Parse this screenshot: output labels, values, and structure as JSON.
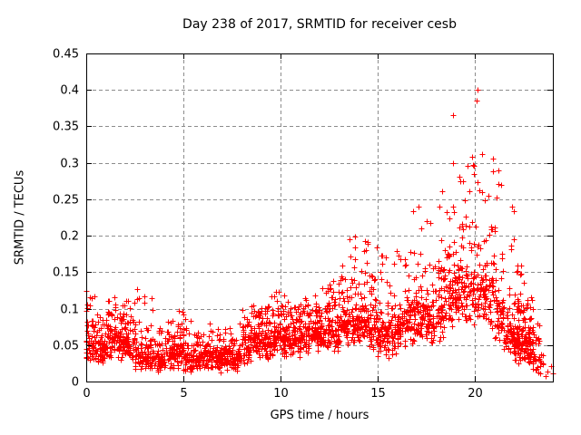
{
  "chart_data": {
    "type": "scatter",
    "title": "Day 238 of 2017, SRMTID for receiver cesb",
    "xlabel": "GPS time / hours",
    "ylabel": "SRMTID / TECUs",
    "xlim": [
      0,
      24
    ],
    "ylim": [
      0,
      0.45
    ],
    "xticks": [
      [
        0,
        "0"
      ],
      [
        5,
        "5"
      ],
      [
        10,
        "10"
      ],
      [
        15,
        "15"
      ],
      [
        20,
        "20"
      ]
    ],
    "yticks": [
      [
        0,
        "0"
      ],
      [
        0.05,
        "0.05"
      ],
      [
        0.1,
        "0.1"
      ],
      [
        0.15,
        "0.15"
      ],
      [
        0.2,
        "0.2"
      ],
      [
        0.25,
        "0.25"
      ],
      [
        0.3,
        "0.3"
      ],
      [
        0.35,
        "0.35"
      ],
      [
        0.4,
        "0.4"
      ],
      [
        0.45,
        "0.45"
      ]
    ],
    "grid": true,
    "grid_color": "#8c8c8c",
    "border_color": "#000000",
    "background": "#ffffff",
    "legend": "none",
    "marker": {
      "shape": "plus",
      "color": "#ff0000",
      "size": 7
    },
    "peak_point": {
      "x": 20.4,
      "y": 0.415
    },
    "seed": 2382017,
    "density_bins_note": "Dense scatter (~2700 pts). Each bin: [start_hour (0.5h wide), point_count, band_low_TECU, band_high_TECU, tail_max_TECU]. ~80% of points lie in the band, rest taper up to tail max.",
    "density_bins": [
      [
        0.0,
        65,
        0.015,
        0.075,
        0.125
      ],
      [
        0.5,
        60,
        0.02,
        0.07,
        0.1
      ],
      [
        1.0,
        60,
        0.03,
        0.09,
        0.12
      ],
      [
        1.5,
        60,
        0.025,
        0.085,
        0.11
      ],
      [
        2.0,
        58,
        0.02,
        0.08,
        0.13
      ],
      [
        2.5,
        52,
        0.012,
        0.06,
        0.13
      ],
      [
        3.0,
        52,
        0.01,
        0.055,
        0.115
      ],
      [
        3.5,
        52,
        0.01,
        0.05,
        0.08
      ],
      [
        4.0,
        52,
        0.015,
        0.055,
        0.085
      ],
      [
        4.5,
        55,
        0.015,
        0.06,
        0.1
      ],
      [
        5.0,
        52,
        0.012,
        0.05,
        0.105
      ],
      [
        5.5,
        52,
        0.01,
        0.05,
        0.07
      ],
      [
        6.0,
        52,
        0.015,
        0.055,
        0.08
      ],
      [
        6.5,
        52,
        0.012,
        0.05,
        0.075
      ],
      [
        7.0,
        52,
        0.015,
        0.055,
        0.09
      ],
      [
        7.5,
        52,
        0.012,
        0.05,
        0.08
      ],
      [
        8.0,
        55,
        0.02,
        0.075,
        0.1
      ],
      [
        8.5,
        55,
        0.03,
        0.09,
        0.105
      ],
      [
        9.0,
        60,
        0.025,
        0.08,
        0.11
      ],
      [
        9.5,
        60,
        0.03,
        0.09,
        0.125
      ],
      [
        10.0,
        60,
        0.03,
        0.09,
        0.12
      ],
      [
        10.5,
        60,
        0.03,
        0.085,
        0.11
      ],
      [
        11.0,
        60,
        0.035,
        0.09,
        0.12
      ],
      [
        11.5,
        60,
        0.04,
        0.09,
        0.12
      ],
      [
        12.0,
        60,
        0.04,
        0.095,
        0.13
      ],
      [
        12.5,
        60,
        0.04,
        0.1,
        0.14
      ],
      [
        13.0,
        60,
        0.045,
        0.11,
        0.16
      ],
      [
        13.5,
        60,
        0.05,
        0.115,
        0.2
      ],
      [
        14.0,
        60,
        0.045,
        0.12,
        0.21
      ],
      [
        14.5,
        60,
        0.035,
        0.11,
        0.19
      ],
      [
        15.0,
        55,
        0.03,
        0.1,
        0.24
      ],
      [
        15.5,
        55,
        0.03,
        0.1,
        0.18
      ],
      [
        16.0,
        55,
        0.04,
        0.11,
        0.22
      ],
      [
        16.5,
        55,
        0.05,
        0.12,
        0.25
      ],
      [
        17.0,
        55,
        0.05,
        0.125,
        0.24
      ],
      [
        17.5,
        55,
        0.045,
        0.12,
        0.25
      ],
      [
        18.0,
        55,
        0.05,
        0.14,
        0.27
      ],
      [
        18.5,
        60,
        0.06,
        0.17,
        0.385
      ],
      [
        19.0,
        60,
        0.07,
        0.18,
        0.35
      ],
      [
        19.5,
        55,
        0.07,
        0.17,
        0.31
      ],
      [
        20.0,
        55,
        0.06,
        0.18,
        0.415
      ],
      [
        20.5,
        55,
        0.06,
        0.16,
        0.35
      ],
      [
        21.0,
        60,
        0.05,
        0.13,
        0.3
      ],
      [
        21.5,
        60,
        0.03,
        0.1,
        0.25
      ],
      [
        22.0,
        90,
        0.02,
        0.095,
        0.16
      ],
      [
        22.5,
        90,
        0.015,
        0.085,
        0.12
      ],
      [
        23.0,
        30,
        0.004,
        0.05,
        0.09
      ],
      [
        23.5,
        4,
        0.003,
        0.03,
        0.05
      ]
    ]
  }
}
